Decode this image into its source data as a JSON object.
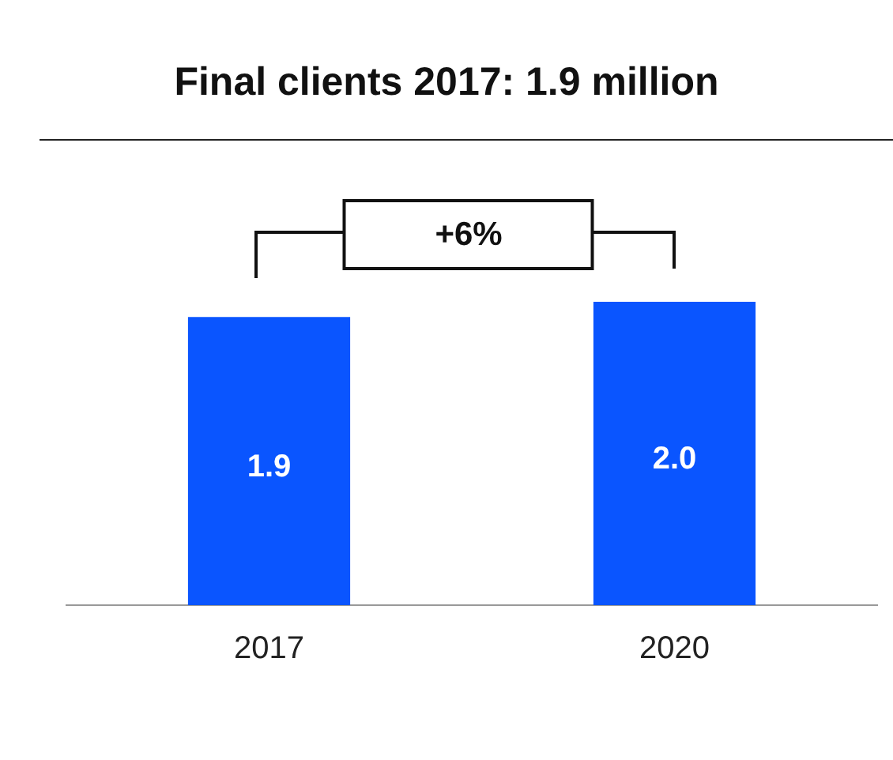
{
  "chart_data": {
    "type": "bar",
    "title": "Final clients 2017: 1.9 million",
    "categories": [
      "2017",
      "2020"
    ],
    "values": [
      1.9,
      2.0
    ],
    "color": "#0a55ff",
    "value_labels": [
      "1.9",
      "2.0"
    ],
    "annotations": [
      "+6%"
    ],
    "tick_labels": "x"
  }
}
